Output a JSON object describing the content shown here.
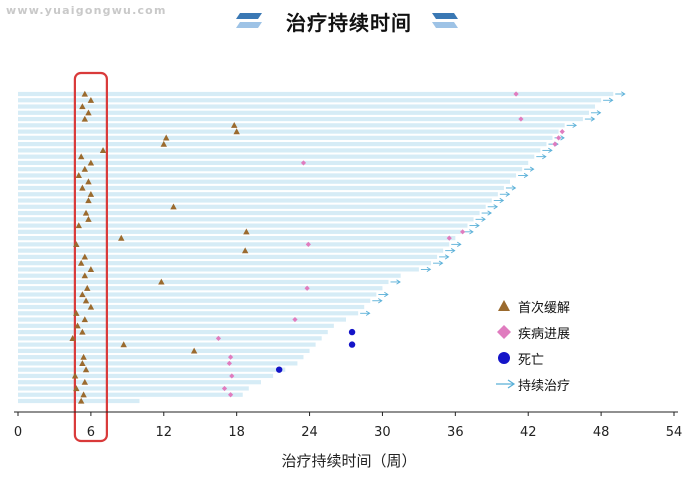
{
  "watermark": "www.yuaigongwu.com",
  "header": {
    "title": "治疗持续时间"
  },
  "colors": {
    "bar": "#d6ecf6",
    "remission": "#9a6a2e",
    "progression": "#e07cbf",
    "death": "#1414c8",
    "ongoing": "#5ab0d8",
    "highlight": "#d93a3a",
    "title_deco": "#3a78b4"
  },
  "chart_data": {
    "type": "swimmer",
    "title": "治疗持续时间",
    "xlabel": "治疗持续时间（周）",
    "ylabel": "",
    "xlim": [
      0,
      54
    ],
    "xticks": [
      0,
      6,
      12,
      18,
      24,
      30,
      36,
      42,
      48,
      54
    ],
    "grid": false,
    "highlight_x": 6,
    "legend": [
      {
        "key": "remission",
        "label": "首次缓解"
      },
      {
        "key": "progression",
        "label": "疾病进展"
      },
      {
        "key": "death",
        "label": "死亡"
      },
      {
        "key": "ongoing",
        "label": "持续治疗"
      }
    ],
    "legend_position": "bottom-right",
    "patients": [
      {
        "duration": 49.0,
        "remission": 5.5,
        "progression": 41.0,
        "ongoing": true
      },
      {
        "duration": 48.0,
        "remission": 6.0,
        "ongoing": true
      },
      {
        "duration": 47.5,
        "remission": 5.3
      },
      {
        "duration": 47.0,
        "remission": 5.8,
        "ongoing": true
      },
      {
        "duration": 46.5,
        "remission": 5.5,
        "progression": 41.4,
        "ongoing": true
      },
      {
        "duration": 45.0,
        "remission": 17.8,
        "ongoing": true
      },
      {
        "duration": 44.5,
        "remission": 18.0,
        "progression": 44.8
      },
      {
        "duration": 44.0,
        "remission": 12.2,
        "progression": 44.5,
        "ongoing": true
      },
      {
        "duration": 43.5,
        "remission": 12.0,
        "progression": 44.2,
        "ongoing": true
      },
      {
        "duration": 43.0,
        "remission": 7.0,
        "ongoing": true
      },
      {
        "duration": 42.5,
        "remission": 5.2,
        "ongoing": true
      },
      {
        "duration": 42.0,
        "remission": 6.0,
        "progression": 23.5
      },
      {
        "duration": 41.5,
        "remission": 5.5,
        "ongoing": true
      },
      {
        "duration": 41.0,
        "remission": 5.0,
        "ongoing": true
      },
      {
        "duration": 40.5,
        "remission": 5.8
      },
      {
        "duration": 40.0,
        "remission": 5.3,
        "ongoing": true
      },
      {
        "duration": 39.5,
        "remission": 6.0,
        "ongoing": true
      },
      {
        "duration": 39.0,
        "remission": 5.8,
        "ongoing": true
      },
      {
        "duration": 38.5,
        "remission": 12.8,
        "ongoing": true
      },
      {
        "duration": 38.0,
        "remission": 5.6,
        "ongoing": true
      },
      {
        "duration": 37.5,
        "remission": 5.8,
        "ongoing": true
      },
      {
        "duration": 37.0,
        "remission": 5.0,
        "ongoing": true
      },
      {
        "duration": 36.5,
        "remission": 18.8,
        "progression": 36.6,
        "ongoing": true
      },
      {
        "duration": 36.0,
        "remission": 8.5,
        "progression": 35.5
      },
      {
        "duration": 35.5,
        "remission": 4.8,
        "progression": 23.9,
        "ongoing": true
      },
      {
        "duration": 35.0,
        "remission": 18.7,
        "ongoing": true
      },
      {
        "duration": 34.5,
        "remission": 5.5,
        "ongoing": true
      },
      {
        "duration": 34.0,
        "remission": 5.2,
        "ongoing": true
      },
      {
        "duration": 33.0,
        "remission": 6.0,
        "ongoing": true
      },
      {
        "duration": 31.5,
        "remission": 5.5
      },
      {
        "duration": 30.5,
        "remission": 11.8,
        "ongoing": true
      },
      {
        "duration": 30.0,
        "remission": 5.7,
        "progression": 23.8
      },
      {
        "duration": 29.5,
        "remission": 5.3,
        "ongoing": true
      },
      {
        "duration": 29.0,
        "remission": 5.6,
        "ongoing": true
      },
      {
        "duration": 28.5,
        "remission": 6.0
      },
      {
        "duration": 28.0,
        "remission": 4.8,
        "ongoing": true
      },
      {
        "duration": 27.0,
        "remission": 5.5,
        "progression": 22.8
      },
      {
        "duration": 26.0,
        "remission": 4.9
      },
      {
        "duration": 25.5,
        "remission": 5.3,
        "death": 27.5
      },
      {
        "duration": 25.0,
        "remission": 4.5,
        "progression": 16.5
      },
      {
        "duration": 24.5,
        "remission": 8.7,
        "death": 27.5
      },
      {
        "duration": 24.0,
        "remission": 14.5
      },
      {
        "duration": 23.5,
        "remission": 5.4,
        "progression": 17.5
      },
      {
        "duration": 23.0,
        "remission": 5.3,
        "progression": 17.4
      },
      {
        "duration": 22.0,
        "remission": 5.6,
        "death": 21.5
      },
      {
        "duration": 21.0,
        "remission": 4.7,
        "progression": 17.6
      },
      {
        "duration": 20.0,
        "remission": 5.5
      },
      {
        "duration": 19.0,
        "remission": 4.8,
        "progression": 17.0
      },
      {
        "duration": 18.5,
        "remission": 5.4,
        "progression": 17.5
      },
      {
        "duration": 10.0,
        "remission": 5.2
      }
    ]
  }
}
